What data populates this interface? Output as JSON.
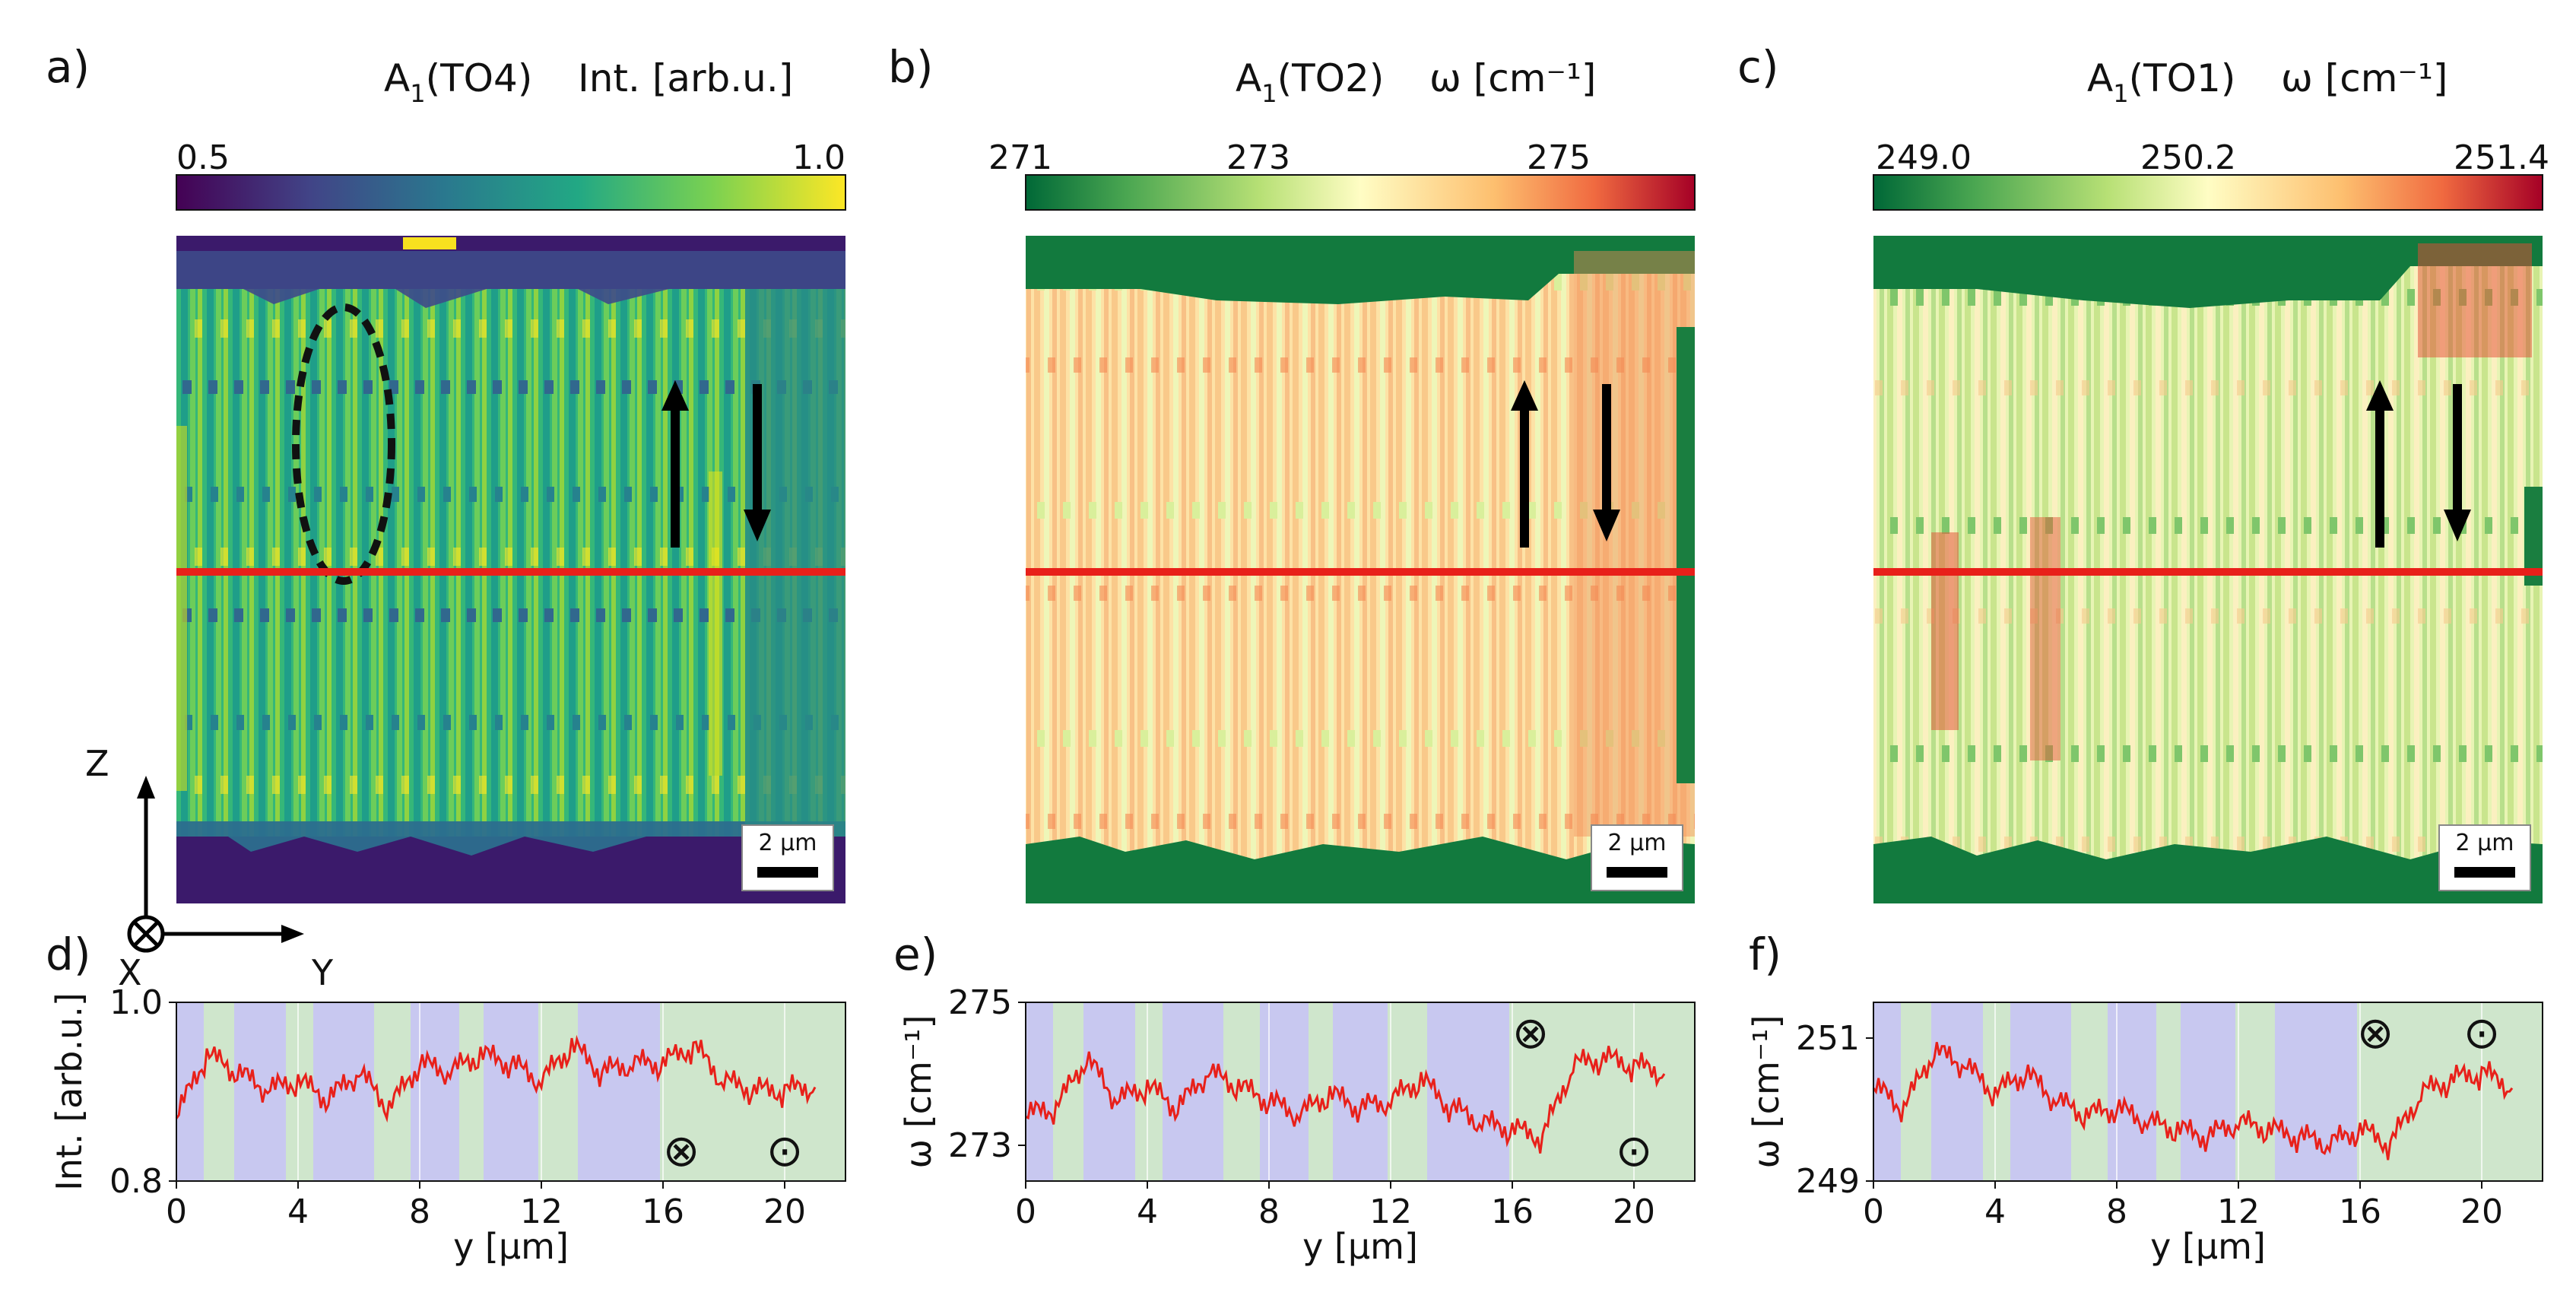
{
  "panel_labels": [
    "a)",
    "b)",
    "c)",
    "d)",
    "e)",
    "f)"
  ],
  "colorbars": [
    {
      "mode": "Int. [arb.u.]",
      "mode_sub": "TO4",
      "ticks": [
        "0.5",
        "1.0"
      ],
      "colormap": "viridis"
    },
    {
      "mode": "ω [cm⁻¹]",
      "mode_sub": "TO2",
      "ticks": [
        "271",
        "273",
        "275"
      ],
      "colormap": "RdYlGn_r"
    },
    {
      "mode": "ω [cm⁻¹]",
      "mode_sub": "TO1",
      "ticks": [
        "249.0",
        "250.2",
        "251.4"
      ],
      "colormap": "RdYlGn_r"
    }
  ],
  "mode_prefix": "A",
  "mode_prefix_sub": "1",
  "scale_bar": "2 µm",
  "axes_labels": {
    "z": "Z",
    "x": "X",
    "y": "Y"
  },
  "domain_symbols": {
    "into_page": "⊗",
    "out_of_page": "⊙"
  },
  "colors": {
    "line": "#e8201a",
    "domain_a": "#c8c8f0",
    "domain_b": "#cfe6cc",
    "plot_bg": "#dcecd8"
  },
  "chart_data": [
    {
      "type": "heatmap",
      "panel": "a)",
      "colormap": "viridis",
      "clim": [
        0.5,
        1.0
      ]
    },
    {
      "type": "heatmap",
      "panel": "b)",
      "colormap": "RdYlGn_r",
      "clim": [
        271,
        275.8
      ]
    },
    {
      "type": "heatmap",
      "panel": "c)",
      "colormap": "RdYlGn_r",
      "clim": [
        248.6,
        251.5
      ]
    },
    {
      "type": "line",
      "panel": "d)",
      "xlabel": "y [µm]",
      "ylabel": "Int. [arb.u.]",
      "xlim": [
        0,
        22
      ],
      "ylim": [
        0.8,
        1.0
      ],
      "xticks": [
        "0",
        "4",
        "8",
        "12",
        "16",
        "20"
      ],
      "yticks": [
        "0.8",
        "1.0"
      ],
      "x": [
        0,
        1,
        2,
        3,
        4,
        5,
        6,
        7,
        8,
        9,
        10,
        11,
        12,
        13,
        14,
        15,
        16,
        17,
        18,
        19,
        20,
        21
      ],
      "y": [
        0.87,
        0.94,
        0.92,
        0.9,
        0.91,
        0.89,
        0.92,
        0.88,
        0.93,
        0.92,
        0.94,
        0.93,
        0.91,
        0.95,
        0.92,
        0.93,
        0.93,
        0.95,
        0.91,
        0.9,
        0.9,
        0.905
      ],
      "domains": [
        [
          0,
          0.9,
          "a"
        ],
        [
          0.9,
          1.9,
          "b"
        ],
        [
          1.9,
          3.6,
          "a"
        ],
        [
          3.6,
          4.5,
          "b"
        ],
        [
          4.5,
          6.5,
          "a"
        ],
        [
          6.5,
          7.7,
          "b"
        ],
        [
          7.7,
          9.3,
          "a"
        ],
        [
          9.3,
          10.1,
          "b"
        ],
        [
          10.1,
          11.9,
          "a"
        ],
        [
          11.9,
          13.2,
          "b"
        ],
        [
          13.2,
          15.9,
          "a"
        ],
        [
          15.9,
          17.5,
          "b"
        ],
        [
          17.5,
          22,
          "b"
        ]
      ]
    },
    {
      "type": "line",
      "panel": "e)",
      "xlabel": "y [µm]",
      "ylabel": "ω [cm⁻¹]",
      "xlim": [
        0,
        22
      ],
      "ylim": [
        272.5,
        275
      ],
      "xticks": [
        "0",
        "4",
        "8",
        "12",
        "16",
        "20"
      ],
      "yticks": [
        "273",
        "275"
      ],
      "x": [
        0,
        1,
        2,
        3,
        4,
        5,
        6,
        7,
        8,
        9,
        10,
        11,
        12,
        13,
        14,
        15,
        16,
        17,
        18,
        19,
        20,
        21
      ],
      "y": [
        273.4,
        273.5,
        274.2,
        273.6,
        273.8,
        273.5,
        274.0,
        273.8,
        273.6,
        273.4,
        273.7,
        273.5,
        273.6,
        273.9,
        273.5,
        273.3,
        273.2,
        273.1,
        274.1,
        274.2,
        274.1,
        274.0
      ],
      "domains": [
        [
          0,
          0.9,
          "a"
        ],
        [
          0.9,
          1.9,
          "b"
        ],
        [
          1.9,
          3.6,
          "a"
        ],
        [
          3.6,
          4.5,
          "b"
        ],
        [
          4.5,
          6.5,
          "a"
        ],
        [
          6.5,
          7.7,
          "b"
        ],
        [
          7.7,
          9.3,
          "a"
        ],
        [
          9.3,
          10.1,
          "b"
        ],
        [
          10.1,
          11.9,
          "a"
        ],
        [
          11.9,
          13.2,
          "b"
        ],
        [
          13.2,
          15.9,
          "a"
        ],
        [
          15.9,
          17.5,
          "b"
        ],
        [
          17.5,
          22,
          "b"
        ]
      ]
    },
    {
      "type": "line",
      "panel": "f)",
      "xlabel": "y [µm]",
      "ylabel": "ω [cm⁻¹]",
      "xlim": [
        0,
        22
      ],
      "ylim": [
        249,
        251.5
      ],
      "xticks": [
        "0",
        "4",
        "8",
        "12",
        "16",
        "20"
      ],
      "yticks": [
        "249",
        "251"
      ],
      "x": [
        0,
        1,
        2,
        3,
        4,
        5,
        6,
        7,
        8,
        9,
        10,
        11,
        12,
        13,
        14,
        15,
        16,
        17,
        18,
        19,
        20,
        21
      ],
      "y": [
        250.3,
        250.0,
        250.8,
        250.6,
        250.2,
        250.5,
        250.1,
        249.9,
        250.0,
        249.8,
        249.7,
        249.6,
        249.8,
        249.7,
        249.6,
        249.5,
        249.7,
        249.5,
        250.2,
        250.4,
        250.5,
        250.3
      ],
      "domains": [
        [
          0,
          0.9,
          "a"
        ],
        [
          0.9,
          1.9,
          "b"
        ],
        [
          1.9,
          3.6,
          "a"
        ],
        [
          3.6,
          4.5,
          "b"
        ],
        [
          4.5,
          6.5,
          "a"
        ],
        [
          6.5,
          7.7,
          "b"
        ],
        [
          7.7,
          9.3,
          "a"
        ],
        [
          9.3,
          10.1,
          "b"
        ],
        [
          10.1,
          11.9,
          "a"
        ],
        [
          11.9,
          13.2,
          "b"
        ],
        [
          13.2,
          15.9,
          "a"
        ],
        [
          15.9,
          17.5,
          "b"
        ],
        [
          17.5,
          22,
          "b"
        ]
      ]
    }
  ]
}
